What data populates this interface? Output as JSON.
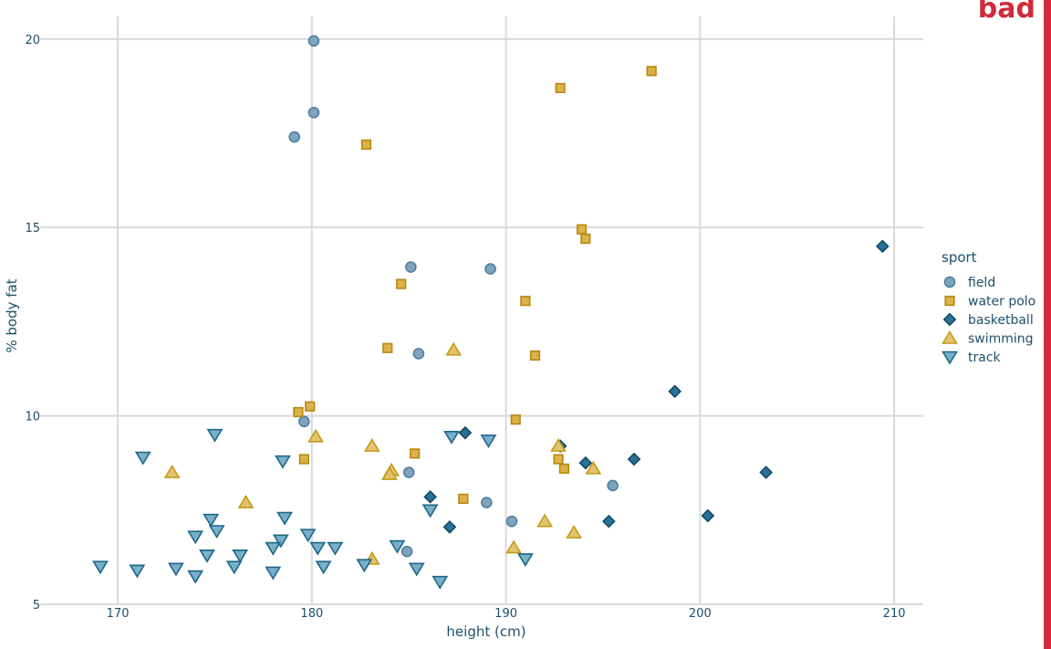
{
  "stamp": {
    "text": "bad",
    "color": "#d02b3a"
  },
  "chart_data": {
    "type": "scatter",
    "xlabel": "height (cm)",
    "ylabel": "% body fat",
    "xlim": [
      166,
      211.5
    ],
    "ylim": [
      5,
      20.6
    ],
    "xticks": [
      170,
      180,
      190,
      200,
      210
    ],
    "yticks": [
      5,
      10,
      15,
      20
    ],
    "grid": true,
    "legend": {
      "title": "sport",
      "placement": "right"
    },
    "series": [
      {
        "name": "field",
        "marker": "circle",
        "fill": "#7ea4bd",
        "stroke": "#4f7f9c",
        "points": [
          [
            180.1,
            19.95
          ],
          [
            180.1,
            18.05
          ],
          [
            179.1,
            17.4
          ],
          [
            185.1,
            13.95
          ],
          [
            189.2,
            13.9
          ],
          [
            185.5,
            11.65
          ],
          [
            179.6,
            9.85
          ],
          [
            185.0,
            8.5
          ],
          [
            195.5,
            8.15
          ],
          [
            189.0,
            7.7
          ],
          [
            190.3,
            7.2
          ],
          [
            184.9,
            6.4
          ]
        ]
      },
      {
        "name": "water polo",
        "marker": "square",
        "fill": "#d9b24a",
        "stroke": "#b8870f",
        "points": [
          [
            197.5,
            19.15
          ],
          [
            192.8,
            18.7
          ],
          [
            182.8,
            17.2
          ],
          [
            193.9,
            14.95
          ],
          [
            194.1,
            14.7
          ],
          [
            184.6,
            13.5
          ],
          [
            191.0,
            13.05
          ],
          [
            183.9,
            11.8
          ],
          [
            191.5,
            11.6
          ],
          [
            179.9,
            10.25
          ],
          [
            179.3,
            10.1
          ],
          [
            190.5,
            9.9
          ],
          [
            185.3,
            9.0
          ],
          [
            179.6,
            8.85
          ],
          [
            192.7,
            8.85
          ],
          [
            193.0,
            8.6
          ],
          [
            187.8,
            7.8
          ]
        ]
      },
      {
        "name": "basketball",
        "marker": "diamond",
        "fill": "#2b7193",
        "stroke": "#0f4a66",
        "points": [
          [
            209.4,
            14.5
          ],
          [
            198.7,
            10.65
          ],
          [
            187.9,
            9.55
          ],
          [
            192.8,
            9.2
          ],
          [
            196.6,
            8.85
          ],
          [
            194.1,
            8.75
          ],
          [
            203.4,
            8.5
          ],
          [
            186.1,
            7.85
          ],
          [
            200.4,
            7.35
          ],
          [
            195.3,
            7.2
          ],
          [
            187.1,
            7.05
          ]
        ]
      },
      {
        "name": "swimming",
        "marker": "triangle-up",
        "fill": "#e3c36d",
        "stroke": "#c49a1b",
        "points": [
          [
            187.3,
            11.75
          ],
          [
            180.2,
            9.45
          ],
          [
            183.1,
            9.2
          ],
          [
            192.7,
            9.2
          ],
          [
            172.8,
            8.5
          ],
          [
            184.1,
            8.55
          ],
          [
            184.0,
            8.45
          ],
          [
            194.5,
            8.6
          ],
          [
            176.6,
            7.7
          ],
          [
            192.0,
            7.2
          ],
          [
            193.5,
            6.9
          ],
          [
            190.4,
            6.5
          ],
          [
            183.1,
            6.2
          ]
        ]
      },
      {
        "name": "track",
        "marker": "triangle-down",
        "fill": "#79b0c9",
        "stroke": "#1e6687",
        "points": [
          [
            175.0,
            9.5
          ],
          [
            187.2,
            9.45
          ],
          [
            189.1,
            9.35
          ],
          [
            171.3,
            8.9
          ],
          [
            178.5,
            8.8
          ],
          [
            186.1,
            7.5
          ],
          [
            174.8,
            7.25
          ],
          [
            178.6,
            7.3
          ],
          [
            175.1,
            6.95
          ],
          [
            174.0,
            6.8
          ],
          [
            179.8,
            6.85
          ],
          [
            178.4,
            6.7
          ],
          [
            180.3,
            6.5
          ],
          [
            181.2,
            6.5
          ],
          [
            184.4,
            6.55
          ],
          [
            178.0,
            6.5
          ],
          [
            174.6,
            6.3
          ],
          [
            176.3,
            6.3
          ],
          [
            191.0,
            6.2
          ],
          [
            169.1,
            6.0
          ],
          [
            171.0,
            5.9
          ],
          [
            173.0,
            5.95
          ],
          [
            176.0,
            6.0
          ],
          [
            180.6,
            6.0
          ],
          [
            182.7,
            6.05
          ],
          [
            185.4,
            5.95
          ],
          [
            174.0,
            5.75
          ],
          [
            178.0,
            5.85
          ],
          [
            186.6,
            5.6
          ]
        ]
      }
    ]
  }
}
